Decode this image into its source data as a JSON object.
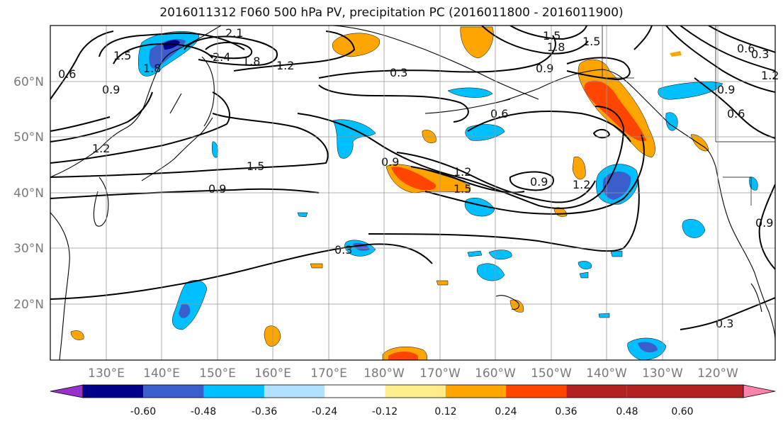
{
  "title": "2016011312 F060 500 hPa PV, precipitation PC (2016011800 - 2016011900)",
  "lat_labels": [
    "60°N",
    "50°N",
    "40°N",
    "30°N",
    "20°N"
  ],
  "lon_labels": [
    "130°E",
    "140°E",
    "150°E",
    "160°E",
    "170°E",
    "180°W",
    "170°W",
    "160°W",
    "150°W",
    "140°W",
    "130°W",
    "120°W"
  ],
  "colorbar": {
    "colors": [
      "#9932cc",
      "#00008b",
      "#3a5fcd",
      "#00bfff",
      "#b0e2ff",
      "#ffffff",
      "#ffec8b",
      "#ffa500",
      "#ff4500",
      "#b22222",
      "#ff82ab"
    ],
    "labels": [
      "-0.60",
      "-0.48",
      "-0.36",
      "-0.24",
      "-0.12",
      "0.12",
      "0.24",
      "0.36",
      "0.48",
      "0.60"
    ]
  },
  "contour_labels": [
    "2.1",
    "2.4",
    "1.8",
    "1.5",
    "1.8",
    "1.2",
    "0.3",
    "0.6",
    "0.9",
    "1.2",
    "1.5",
    "0.9",
    "0.3",
    "1.5",
    "0.9",
    "0.9",
    "1.2",
    "1.5",
    "0.6",
    "0.9",
    "1.2",
    "0.6",
    "0.9",
    "0.3",
    "1.2",
    "0.9",
    "0.6",
    "0.3",
    "1.8",
    "1.5"
  ]
}
